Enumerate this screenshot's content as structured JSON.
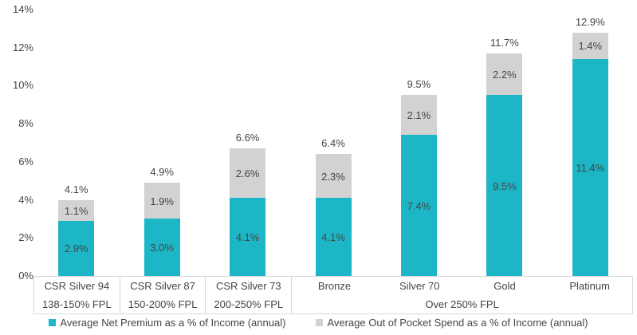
{
  "chart_data": {
    "type": "bar",
    "stacked": true,
    "title": "",
    "categories": [
      "CSR Silver 94",
      "CSR Silver 87",
      "CSR Silver 73",
      "Bronze",
      "Silver 70",
      "Gold",
      "Platinum"
    ],
    "group_labels": [
      {
        "label": "138-150% FPL",
        "cols": 1
      },
      {
        "label": "150-200% FPL",
        "cols": 1
      },
      {
        "label": "200-250% FPL",
        "cols": 1
      },
      {
        "label": "Over 250% FPL",
        "cols": 4
      }
    ],
    "series": [
      {
        "name": "Average Net Premium as a % of Income (annual)",
        "color": "#1db6c6",
        "values": [
          2.9,
          3.0,
          4.1,
          4.1,
          7.4,
          9.5,
          11.4
        ]
      },
      {
        "name": "Average Out of Pocket Spend as a % of Income (annual)",
        "color": "#d2d2d2",
        "values": [
          1.1,
          1.9,
          2.6,
          2.3,
          2.1,
          2.2,
          1.4
        ]
      }
    ],
    "totals": [
      4.1,
      4.9,
      6.6,
      6.4,
      9.5,
      11.7,
      12.9
    ],
    "value_suffix": "%",
    "y_axis": {
      "min": 0,
      "max": 14,
      "step": 2,
      "ticks": [
        "0%",
        "2%",
        "4%",
        "6%",
        "8%",
        "10%",
        "12%",
        "14%"
      ]
    },
    "grid": false,
    "legend_position": "bottom"
  },
  "colors": {
    "net_premium": "#1db6c6",
    "out_of_pocket": "#d2d2d2",
    "label_text": "#454545",
    "axis_border": "#d9d9d9",
    "background": "#ffffff"
  }
}
